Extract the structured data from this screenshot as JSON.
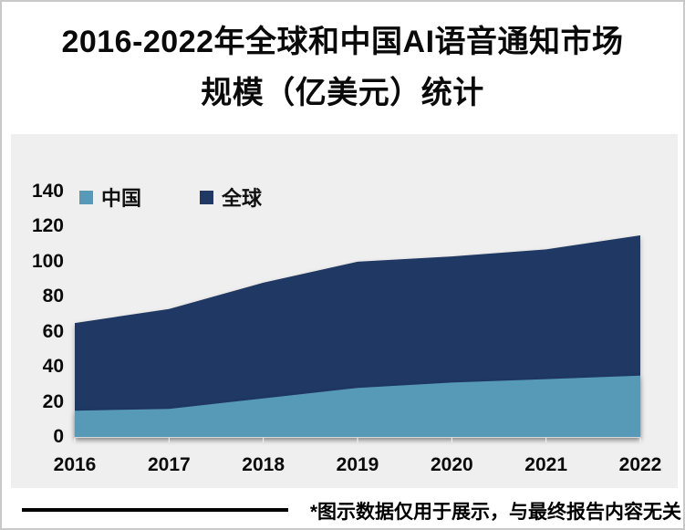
{
  "title": {
    "line1": "2016-2022年全球和中国AI语音通知市场",
    "line2": "规模（亿美元）统计"
  },
  "footnote": "*图示数据仅用于展示，与最终报告内容无关",
  "colors": {
    "china": "#569AB8",
    "global": "#1F3864",
    "panel_bg": "#EFEFEF",
    "text": "#0A0A0A",
    "baseline": "#D9D9D9",
    "tick": "#F7F7F7"
  },
  "chart_data": {
    "type": "area",
    "title": "2016-2022年全球和中国AI语音通知市场规模（亿美元）统计",
    "categories": [
      "2016",
      "2017",
      "2018",
      "2019",
      "2020",
      "2021",
      "2022"
    ],
    "series": [
      {
        "key": "china",
        "name": "中国",
        "values": [
          15,
          16,
          22,
          28,
          31,
          33,
          35
        ]
      },
      {
        "key": "global",
        "name": "全球",
        "values": [
          65,
          73,
          88,
          100,
          103,
          107,
          115
        ]
      }
    ],
    "xlabel": "",
    "ylabel": "",
    "ylim": [
      0,
      140
    ],
    "yticks": [
      0,
      20,
      40,
      60,
      80,
      100,
      120,
      140
    ],
    "grid": false,
    "legend_position": "top-left"
  }
}
